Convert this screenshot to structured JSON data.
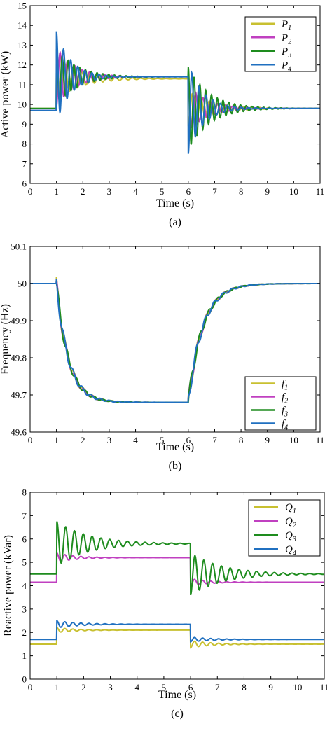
{
  "chart_data": [
    {
      "type": "line",
      "panel_label": "(a)",
      "xlabel": "Time (s)",
      "ylabel": "Active power (kW)",
      "xlim": [
        0,
        11
      ],
      "ylim": [
        6,
        15
      ],
      "xticks": [
        0,
        1,
        2,
        3,
        4,
        5,
        6,
        7,
        8,
        9,
        10,
        11
      ],
      "yticks": [
        6,
        7,
        8,
        9,
        10,
        11,
        12,
        13,
        14,
        15
      ],
      "grid": false,
      "legend_position": "top-right",
      "series": [
        {
          "name": "P",
          "subscript": "1",
          "color": "#c8c030",
          "initial": 9.8,
          "mid": 11.3,
          "final": 9.8,
          "step1_peak": 12.4,
          "step2_peak": 8.9,
          "decay": 0.9,
          "period": 0.32,
          "phase": 0.5
        },
        {
          "name": "P",
          "subscript": "2",
          "color": "#c040c0",
          "initial": 9.7,
          "mid": 11.4,
          "final": 9.8,
          "step1_peak": 9.9,
          "step2_peak": 11.0,
          "decay": 0.7,
          "period": 0.28,
          "phase": 0.25
        },
        {
          "name": "P",
          "subscript": "3",
          "color": "#1e8c1e",
          "initial": 9.8,
          "mid": 11.4,
          "final": 9.8,
          "step1_peak": 12.8,
          "step2_peak": 11.9,
          "decay": 0.8,
          "period": 0.22,
          "phase": 0.0
        },
        {
          "name": "P",
          "subscript": "4",
          "color": "#2070c0",
          "initial": 9.7,
          "mid": 11.4,
          "final": 9.8,
          "step1_peak": 13.7,
          "step2_peak": 7.5,
          "decay": 0.55,
          "period": 0.27,
          "phase": 0.75
        }
      ]
    },
    {
      "type": "line",
      "panel_label": "(b)",
      "xlabel": "Time (s)",
      "ylabel": "Frequency (Hz)",
      "xlim": [
        0,
        11
      ],
      "ylim": [
        49.6,
        50.1
      ],
      "xticks": [
        0,
        1,
        2,
        3,
        4,
        5,
        6,
        7,
        8,
        9,
        10,
        11
      ],
      "yticks": [
        49.6,
        49.7,
        49.8,
        49.9,
        50,
        50.1
      ],
      "grid": false,
      "legend_position": "bottom-right",
      "series": [
        {
          "name": "f",
          "subscript": "1",
          "color": "#c8c030",
          "initial": 50.0,
          "mid": 49.68,
          "final": 50.0,
          "step1_peak": 49.9,
          "step2_peak": 49.78,
          "decay": 0.9,
          "period": 0.34,
          "phase": 0.5
        },
        {
          "name": "f",
          "subscript": "2",
          "color": "#c040c0",
          "initial": 50.0,
          "mid": 49.68,
          "final": 50.0,
          "step1_peak": 49.89,
          "step2_peak": 49.8,
          "decay": 0.8,
          "period": 0.34,
          "phase": 0.25
        },
        {
          "name": "f",
          "subscript": "3",
          "color": "#1e8c1e",
          "initial": 50.0,
          "mid": 49.68,
          "final": 50.0,
          "step1_peak": 49.93,
          "step2_peak": 49.77,
          "decay": 0.8,
          "period": 0.34,
          "phase": 0.0
        },
        {
          "name": "f",
          "subscript": "4",
          "color": "#2070c0",
          "initial": 50.0,
          "mid": 49.68,
          "final": 50.0,
          "step1_peak": 49.91,
          "step2_peak": 49.79,
          "decay": 0.9,
          "period": 0.34,
          "phase": 0.75
        }
      ]
    },
    {
      "type": "line",
      "panel_label": "(c)",
      "xlabel": "Time (s)",
      "ylabel": "Reactive power (kVar)",
      "xlim": [
        0,
        11
      ],
      "ylim": [
        0,
        8
      ],
      "xticks": [
        0,
        1,
        2,
        3,
        4,
        5,
        6,
        7,
        8,
        9,
        10,
        11
      ],
      "yticks": [
        0,
        1,
        2,
        3,
        4,
        5,
        6,
        7,
        8
      ],
      "grid": false,
      "legend_position": "top-right",
      "series": [
        {
          "name": "Q",
          "subscript": "1",
          "color": "#c8c030",
          "initial": 1.5,
          "mid": 2.1,
          "final": 1.5,
          "step1_peak": 2.2,
          "step2_peak": 1.35,
          "decay": 0.8,
          "period": 0.3,
          "phase": 0.5
        },
        {
          "name": "Q",
          "subscript": "2",
          "color": "#c040c0",
          "initial": 4.15,
          "mid": 5.2,
          "final": 4.15,
          "step1_peak": 5.4,
          "step2_peak": 4.0,
          "decay": 0.7,
          "period": 0.3,
          "phase": 0.25
        },
        {
          "name": "Q",
          "subscript": "3",
          "color": "#1e8c1e",
          "initial": 4.5,
          "mid": 5.8,
          "final": 4.5,
          "step1_peak": 6.75,
          "step2_peak": 3.6,
          "decay": 1.2,
          "period": 0.33,
          "phase": 0.0
        },
        {
          "name": "Q",
          "subscript": "4",
          "color": "#2070c0",
          "initial": 1.7,
          "mid": 2.35,
          "final": 1.7,
          "step1_peak": 2.5,
          "step2_peak": 1.6,
          "decay": 0.9,
          "period": 0.3,
          "phase": 0.75
        }
      ]
    }
  ]
}
